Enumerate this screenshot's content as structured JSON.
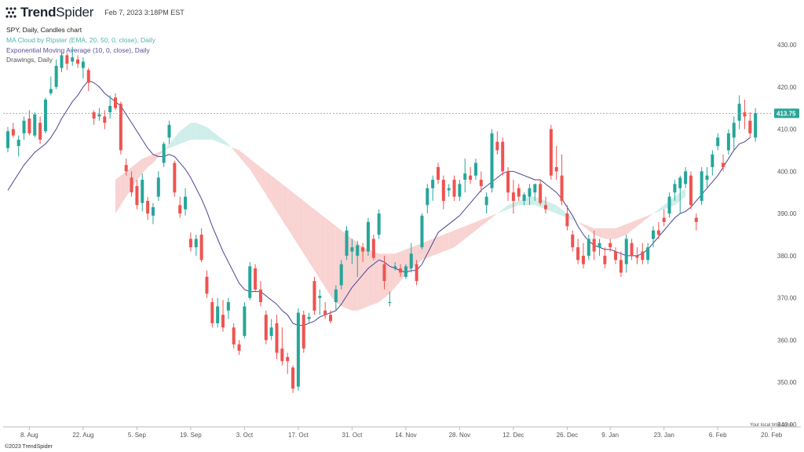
{
  "header": {
    "brand_bold": "Trend",
    "brand_light": "Spider",
    "timestamp": "Feb 7, 2023 3:18PM EST"
  },
  "legend": {
    "line0": "SPY, Daily, Candles chart",
    "line1": "MA Cloud by Ripster (EMA, 20, 50, 0, close), Daily",
    "line2": "Exponential Moving Average (10, 0, close), Daily",
    "line3": "Drawings, Daily"
  },
  "footer": {
    "copyright": "©2023 TrendSpider",
    "timezone_note": "Your local time zone"
  },
  "colors": {
    "up": "#26a69a",
    "down": "#ef5350",
    "ema_line": "#4a4593",
    "cloud_bull": "#cfeeea",
    "cloud_bear": "#f8d3d2",
    "price_line": "#999999",
    "price_tag": "#2aa597"
  },
  "chart_data": {
    "type": "candlestick",
    "symbol": "SPY",
    "interval": "Daily",
    "last_price": "413.75",
    "ylim": [
      340,
      432
    ],
    "y_ticks": [
      340,
      350,
      360,
      370,
      380,
      390,
      400,
      410,
      420,
      430
    ],
    "y_tick_labels": [
      "340.00",
      "350.00",
      "360.00",
      "370.00",
      "380.00",
      "390.00",
      "400.00",
      "410.00",
      "420.00",
      "430.00"
    ],
    "x_ticks": [
      {
        "label": "8. Aug",
        "index": 4
      },
      {
        "label": "22. Aug",
        "index": 14
      },
      {
        "label": "5. Sep",
        "index": 24
      },
      {
        "label": "19. Sep",
        "index": 34
      },
      {
        "label": "3. Oct",
        "index": 44
      },
      {
        "label": "17. Oct",
        "index": 54
      },
      {
        "label": "31. Oct",
        "index": 64
      },
      {
        "label": "14. Nov",
        "index": 74
      },
      {
        "label": "28. Nov",
        "index": 84
      },
      {
        "label": "12. Dec",
        "index": 94
      },
      {
        "label": "26. Dec",
        "index": 104
      },
      {
        "label": "9. Jan",
        "index": 112
      },
      {
        "label": "23. Jan",
        "index": 122
      },
      {
        "label": "6. Feb",
        "index": 132
      },
      {
        "label": "20. Feb",
        "index": 142
      }
    ],
    "candles": [
      {
        "o": 405.5,
        "h": 410.5,
        "l": 404.5,
        "c": 409.5
      },
      {
        "o": 410,
        "h": 411.5,
        "l": 408,
        "c": 408.5
      },
      {
        "o": 406,
        "h": 408.5,
        "l": 403.5,
        "c": 407.5
      },
      {
        "o": 409,
        "h": 413,
        "l": 407.5,
        "c": 412
      },
      {
        "o": 412.5,
        "h": 414.5,
        "l": 408.5,
        "c": 409
      },
      {
        "o": 408.5,
        "h": 414,
        "l": 408,
        "c": 413.5
      },
      {
        "o": 411.5,
        "h": 413,
        "l": 406.5,
        "c": 407.5
      },
      {
        "o": 409.5,
        "h": 417.5,
        "l": 409,
        "c": 417
      },
      {
        "o": 418.5,
        "h": 422.5,
        "l": 418,
        "c": 419.5
      },
      {
        "o": 420,
        "h": 426.5,
        "l": 419.5,
        "c": 425
      },
      {
        "o": 424.5,
        "h": 428.5,
        "l": 423.5,
        "c": 427.5
      },
      {
        "o": 427.5,
        "h": 428,
        "l": 424,
        "c": 425.5
      },
      {
        "o": 426,
        "h": 429.5,
        "l": 425,
        "c": 427
      },
      {
        "o": 426.5,
        "h": 427.5,
        "l": 424.5,
        "c": 425.5
      },
      {
        "o": 424.5,
        "h": 427,
        "l": 422,
        "c": 426
      },
      {
        "o": 424,
        "h": 424.5,
        "l": 419,
        "c": 421
      },
      {
        "o": 414,
        "h": 414.5,
        "l": 411,
        "c": 412.5
      },
      {
        "o": 413,
        "h": 415,
        "l": 412,
        "c": 413.5
      },
      {
        "o": 413,
        "h": 414.5,
        "l": 410,
        "c": 411.5
      },
      {
        "o": 414,
        "h": 418,
        "l": 412.5,
        "c": 415.5
      },
      {
        "o": 417.5,
        "h": 418.5,
        "l": 414.5,
        "c": 415
      },
      {
        "o": 416,
        "h": 416.5,
        "l": 404,
        "c": 405
      },
      {
        "o": 401.5,
        "h": 403,
        "l": 399,
        "c": 400
      },
      {
        "o": 398.5,
        "h": 400,
        "l": 394,
        "c": 395
      },
      {
        "o": 396.5,
        "h": 398,
        "l": 391,
        "c": 392
      },
      {
        "o": 392.5,
        "h": 399.5,
        "l": 390.5,
        "c": 398
      },
      {
        "o": 393,
        "h": 394,
        "l": 388.5,
        "c": 390
      },
      {
        "o": 389.5,
        "h": 392.5,
        "l": 387.5,
        "c": 391.5
      },
      {
        "o": 394,
        "h": 400,
        "l": 393,
        "c": 398.5
      },
      {
        "o": 402,
        "h": 407,
        "l": 401,
        "c": 406.5
      },
      {
        "o": 408,
        "h": 412,
        "l": 406.5,
        "c": 411
      },
      {
        "o": 402,
        "h": 402.5,
        "l": 394,
        "c": 395
      },
      {
        "o": 392,
        "h": 394,
        "l": 389,
        "c": 390
      },
      {
        "o": 391,
        "h": 396,
        "l": 389.5,
        "c": 394
      },
      {
        "o": 384,
        "h": 385.5,
        "l": 381,
        "c": 382
      },
      {
        "o": 382,
        "h": 385,
        "l": 380,
        "c": 384
      },
      {
        "o": 385,
        "h": 386.5,
        "l": 378.5,
        "c": 379
      },
      {
        "o": 375,
        "h": 376.5,
        "l": 370,
        "c": 371
      },
      {
        "o": 369,
        "h": 370,
        "l": 363,
        "c": 364
      },
      {
        "o": 364,
        "h": 370,
        "l": 363,
        "c": 368
      },
      {
        "o": 366,
        "h": 369.5,
        "l": 362,
        "c": 363
      },
      {
        "o": 367,
        "h": 370,
        "l": 365,
        "c": 369
      },
      {
        "o": 363,
        "h": 364,
        "l": 358,
        "c": 359
      },
      {
        "o": 359,
        "h": 360,
        "l": 356.5,
        "c": 357.5
      },
      {
        "o": 361,
        "h": 369,
        "l": 360.5,
        "c": 368
      },
      {
        "o": 370,
        "h": 378.5,
        "l": 369.5,
        "c": 377.5
      },
      {
        "o": 377,
        "h": 378,
        "l": 371.5,
        "c": 372
      },
      {
        "o": 372,
        "h": 374,
        "l": 368,
        "c": 369
      },
      {
        "o": 366,
        "h": 367,
        "l": 359,
        "c": 360
      },
      {
        "o": 361,
        "h": 365,
        "l": 360,
        "c": 363
      },
      {
        "o": 364,
        "h": 366,
        "l": 355.5,
        "c": 357
      },
      {
        "o": 358,
        "h": 363,
        "l": 354,
        "c": 355
      },
      {
        "o": 356,
        "h": 357,
        "l": 352,
        "c": 355
      },
      {
        "o": 353.5,
        "h": 354,
        "l": 347.5,
        "c": 348.5
      },
      {
        "o": 349,
        "h": 367.5,
        "l": 348,
        "c": 366.5
      },
      {
        "o": 366,
        "h": 367,
        "l": 357,
        "c": 358
      },
      {
        "o": 365,
        "h": 366.5,
        "l": 364,
        "c": 365.5
      },
      {
        "o": 374,
        "h": 375,
        "l": 366,
        "c": 367
      },
      {
        "o": 370,
        "h": 372,
        "l": 366,
        "c": 370.5
      },
      {
        "o": 367,
        "h": 369,
        "l": 365,
        "c": 366
      },
      {
        "o": 366,
        "h": 367,
        "l": 364,
        "c": 364.5
      },
      {
        "o": 369,
        "h": 373,
        "l": 367,
        "c": 372
      },
      {
        "o": 373,
        "h": 379,
        "l": 372,
        "c": 378
      },
      {
        "o": 380,
        "h": 387,
        "l": 379,
        "c": 386
      },
      {
        "o": 381,
        "h": 384,
        "l": 378,
        "c": 382
      },
      {
        "o": 380,
        "h": 383.5,
        "l": 375,
        "c": 382.5
      },
      {
        "o": 382,
        "h": 383,
        "l": 378.5,
        "c": 381
      },
      {
        "o": 381,
        "h": 389,
        "l": 380,
        "c": 388
      },
      {
        "o": 384,
        "h": 385,
        "l": 379,
        "c": 379.5
      },
      {
        "o": 385,
        "h": 391,
        "l": 384,
        "c": 390
      },
      {
        "o": 378,
        "h": 380,
        "l": 372,
        "c": 374
      },
      {
        "o": 369,
        "h": 371.5,
        "l": 368,
        "c": 369
      },
      {
        "o": 377,
        "h": 378.5,
        "l": 376.5,
        "c": 377.5
      },
      {
        "o": 377,
        "h": 378,
        "l": 375,
        "c": 376
      },
      {
        "o": 375,
        "h": 378,
        "l": 374.5,
        "c": 377.5
      },
      {
        "o": 377,
        "h": 383,
        "l": 376,
        "c": 380.5
      },
      {
        "o": 378,
        "h": 379,
        "l": 373,
        "c": 374
      },
      {
        "o": 382,
        "h": 390,
        "l": 381.5,
        "c": 389.5
      },
      {
        "o": 392,
        "h": 397,
        "l": 390,
        "c": 396
      },
      {
        "o": 396,
        "h": 399,
        "l": 393,
        "c": 398
      },
      {
        "o": 401,
        "h": 402,
        "l": 397,
        "c": 398
      },
      {
        "o": 398,
        "h": 399,
        "l": 391,
        "c": 393
      },
      {
        "o": 395.5,
        "h": 397,
        "l": 394,
        "c": 396
      },
      {
        "o": 398,
        "h": 399,
        "l": 393,
        "c": 394
      },
      {
        "o": 394,
        "h": 398,
        "l": 393,
        "c": 397
      },
      {
        "o": 398,
        "h": 403,
        "l": 395,
        "c": 399.5
      },
      {
        "o": 399,
        "h": 401,
        "l": 397,
        "c": 398
      },
      {
        "o": 399,
        "h": 403,
        "l": 398,
        "c": 402
      },
      {
        "o": 398,
        "h": 400,
        "l": 395,
        "c": 396.5
      },
      {
        "o": 392,
        "h": 395,
        "l": 390,
        "c": 394
      },
      {
        "o": 396,
        "h": 410,
        "l": 395,
        "c": 409
      },
      {
        "o": 407,
        "h": 409.5,
        "l": 404,
        "c": 405
      },
      {
        "o": 407,
        "h": 408,
        "l": 399,
        "c": 400
      },
      {
        "o": 400,
        "h": 401,
        "l": 393,
        "c": 395
      },
      {
        "o": 395,
        "h": 398,
        "l": 390,
        "c": 393
      },
      {
        "o": 396,
        "h": 397,
        "l": 393,
        "c": 394
      },
      {
        "o": 393,
        "h": 395,
        "l": 392,
        "c": 394.5
      },
      {
        "o": 394,
        "h": 397,
        "l": 392,
        "c": 396
      },
      {
        "o": 395,
        "h": 397,
        "l": 393,
        "c": 397
      },
      {
        "o": 397,
        "h": 398,
        "l": 392,
        "c": 392.5
      },
      {
        "o": 392,
        "h": 394,
        "l": 390,
        "c": 391
      },
      {
        "o": 410,
        "h": 411,
        "l": 398,
        "c": 399
      },
      {
        "o": 401,
        "h": 406,
        "l": 398,
        "c": 400
      },
      {
        "o": 399,
        "h": 404,
        "l": 392,
        "c": 393
      },
      {
        "o": 390,
        "h": 392,
        "l": 386,
        "c": 387
      },
      {
        "o": 385,
        "h": 386,
        "l": 381,
        "c": 382
      },
      {
        "o": 382,
        "h": 384,
        "l": 378,
        "c": 379
      },
      {
        "o": 380,
        "h": 383,
        "l": 377,
        "c": 378
      },
      {
        "o": 380,
        "h": 385,
        "l": 379,
        "c": 384
      },
      {
        "o": 384,
        "h": 386,
        "l": 379,
        "c": 381
      },
      {
        "o": 382,
        "h": 384,
        "l": 380,
        "c": 383
      },
      {
        "o": 380,
        "h": 382,
        "l": 377,
        "c": 378
      },
      {
        "o": 383,
        "h": 384,
        "l": 381,
        "c": 382
      },
      {
        "o": 381,
        "h": 382,
        "l": 378,
        "c": 379
      },
      {
        "o": 379,
        "h": 381,
        "l": 375,
        "c": 376
      },
      {
        "o": 378,
        "h": 385,
        "l": 376,
        "c": 384
      },
      {
        "o": 383,
        "h": 384,
        "l": 379,
        "c": 380
      },
      {
        "o": 380,
        "h": 382,
        "l": 378,
        "c": 379.5
      },
      {
        "o": 381,
        "h": 383,
        "l": 378,
        "c": 379
      },
      {
        "o": 379,
        "h": 383,
        "l": 378,
        "c": 382
      },
      {
        "o": 384,
        "h": 387,
        "l": 382,
        "c": 386
      },
      {
        "o": 386,
        "h": 388,
        "l": 384,
        "c": 385
      },
      {
        "o": 389,
        "h": 391,
        "l": 387,
        "c": 388
      },
      {
        "o": 390,
        "h": 395,
        "l": 389,
        "c": 394
      },
      {
        "o": 395,
        "h": 398,
        "l": 393,
        "c": 397
      },
      {
        "o": 396,
        "h": 399,
        "l": 390,
        "c": 398.5
      },
      {
        "o": 397,
        "h": 401,
        "l": 396,
        "c": 400
      },
      {
        "o": 399,
        "h": 400,
        "l": 391,
        "c": 392
      },
      {
        "o": 389,
        "h": 390,
        "l": 386,
        "c": 388
      },
      {
        "o": 393,
        "h": 401,
        "l": 392,
        "c": 400
      },
      {
        "o": 398,
        "h": 401,
        "l": 396,
        "c": 399
      },
      {
        "o": 401,
        "h": 405,
        "l": 399,
        "c": 404
      },
      {
        "o": 406,
        "h": 409,
        "l": 405,
        "c": 408
      },
      {
        "o": 402,
        "h": 404,
        "l": 400,
        "c": 401
      },
      {
        "o": 405,
        "h": 410,
        "l": 404,
        "c": 409
      },
      {
        "o": 408,
        "h": 413,
        "l": 405,
        "c": 411.5
      },
      {
        "o": 412,
        "h": 418,
        "l": 410,
        "c": 416
      },
      {
        "o": 414,
        "h": 417,
        "l": 410,
        "c": 413
      },
      {
        "o": 412,
        "h": 414,
        "l": 408,
        "c": 409
      },
      {
        "o": 408,
        "h": 415,
        "l": 407,
        "c": 413.75
      }
    ],
    "ema10": [
      395.5,
      397.5,
      399.5,
      401.5,
      403,
      404.5,
      405.5,
      406.5,
      408,
      410,
      412.5,
      414.5,
      416.5,
      418,
      420,
      421.5,
      421,
      420,
      418.5,
      417.5,
      416.5,
      415.5,
      413.5,
      411.5,
      409.5,
      407.5,
      405.5,
      404,
      403.5,
      403.5,
      404,
      403.5,
      402,
      400.5,
      398.5,
      396,
      393.5,
      390.5,
      387,
      384,
      381,
      378.5,
      376,
      373.5,
      372,
      371.5,
      371.5,
      371.5,
      370.5,
      369.5,
      368.5,
      367,
      366,
      364,
      363.5,
      363.5,
      364,
      364.5,
      365.5,
      366,
      366.5,
      367,
      368.5,
      370.5,
      372.5,
      374,
      375.5,
      377,
      378,
      379,
      378.5,
      377.5,
      377,
      376.5,
      376,
      376.5,
      376.5,
      378,
      380.5,
      383,
      385.5,
      386.5,
      387.5,
      388.5,
      389.5,
      391,
      392.5,
      394,
      395.5,
      396.5,
      397.5,
      398.5,
      399.5,
      400,
      400,
      399.5,
      399,
      398.5,
      398,
      398,
      397,
      396,
      395,
      393.5,
      391.5,
      389.5,
      387,
      385,
      383.5,
      382.5,
      382,
      381.5,
      381.5,
      381,
      380.5,
      380,
      380,
      380,
      380.5,
      381.5,
      383,
      384.5,
      386,
      387.5,
      389,
      390,
      390.5,
      391.5,
      393,
      394.5,
      396,
      397.5,
      399,
      401,
      403,
      405,
      406.5,
      407,
      408
    ],
    "cloud_fast": [
      390,
      392,
      394,
      396,
      398,
      399.5,
      401,
      402,
      403.5,
      405,
      406.5,
      408,
      409.5,
      410.5,
      411.5,
      411.5,
      411,
      410.5,
      409.5,
      408.5,
      407.5,
      406.5,
      405,
      403.5,
      402,
      400.5,
      398.5,
      396.5,
      394.5,
      392.5,
      390.5,
      388.5,
      386.5,
      384.5,
      382.5,
      380.5,
      378.5,
      376.5,
      374.5,
      372.5,
      370.5,
      369,
      368,
      367.5,
      367,
      367,
      367.5,
      368,
      368.5,
      369,
      370,
      371,
      372.5,
      374,
      375.5,
      377,
      378,
      379,
      379.5,
      380,
      380.5,
      381,
      381.5,
      382,
      383,
      384,
      385,
      386,
      387,
      388,
      389,
      390,
      391,
      392,
      392.5,
      393,
      393.5,
      394,
      394,
      393.5,
      393,
      392.5,
      392,
      391,
      390,
      389,
      388,
      387,
      386,
      385,
      384.5,
      384,
      384,
      384,
      384.5,
      385,
      386,
      387,
      388,
      389,
      390,
      391,
      392,
      393,
      394,
      395,
      396,
      397,
      398
    ],
    "cloud_slow": [
      398,
      399,
      400,
      401,
      402,
      403,
      403.5,
      404,
      404.5,
      405,
      405.5,
      406,
      406.5,
      407,
      407.5,
      407.5,
      407.5,
      407.5,
      407.5,
      407,
      406.5,
      406,
      405.5,
      405,
      404,
      403,
      402,
      401,
      400,
      399,
      398,
      397,
      396,
      395,
      394,
      393,
      392,
      391,
      390,
      389,
      388,
      387,
      386,
      385,
      384,
      383,
      382,
      381.5,
      381,
      380.5,
      380.5,
      380.5,
      380.5,
      381,
      381.5,
      382,
      382.5,
      383,
      383.5,
      384,
      384.5,
      385,
      385.5,
      386,
      386.5,
      387,
      387.5,
      388,
      388.5,
      389,
      389.5,
      390,
      390.5,
      391,
      391.5,
      392,
      392,
      392,
      392,
      391.5,
      391,
      390.5,
      390,
      389.5,
      389,
      388.5,
      388,
      387.5,
      387,
      386.5,
      386.5,
      386.5,
      386.5,
      386.5,
      387,
      387.5,
      388,
      388.5,
      389,
      389.5,
      390,
      390.5,
      391,
      391.5,
      392,
      393,
      394
    ],
    "cloud_start_index": 20
  }
}
